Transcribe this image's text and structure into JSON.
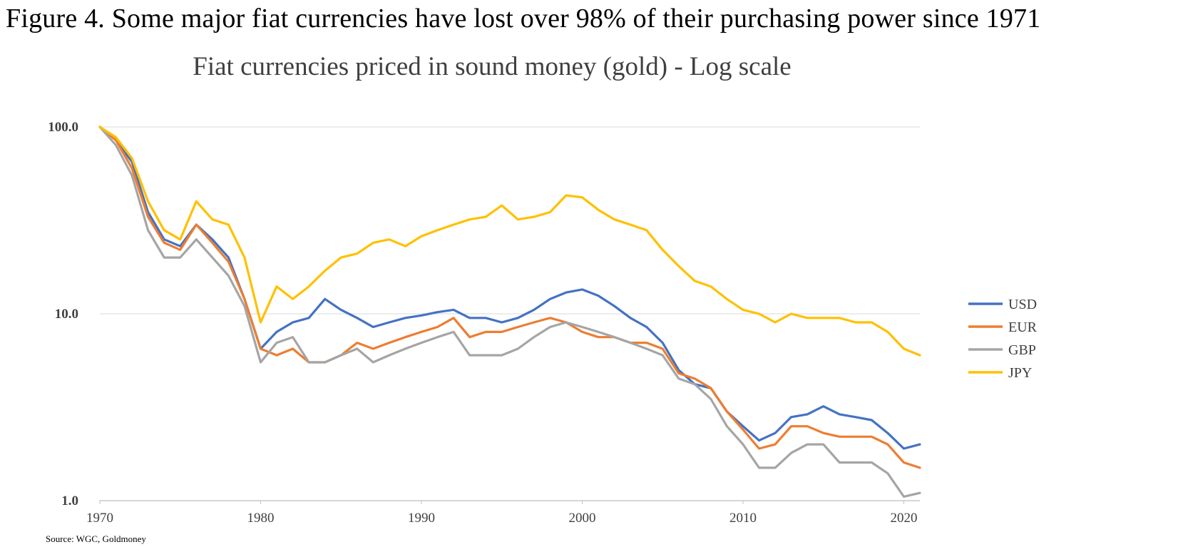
{
  "figure_title": "Figure 4. Some major fiat currencies have lost over 98% of their purchasing power since 1971",
  "source": "Source: WGC, Goldmoney",
  "chart_data": {
    "type": "line",
    "title": "Fiat currencies priced in sound money (gold) - Log scale",
    "xlabel": "",
    "ylabel": "",
    "y_scale": "log",
    "ylim": [
      1.0,
      100.0
    ],
    "xlim": [
      1970,
      2021
    ],
    "x_ticks": [
      "1970",
      "1980",
      "1990",
      "2000",
      "2010",
      "2020"
    ],
    "y_ticks": [
      "1.0",
      "10.0",
      "100.0"
    ],
    "grid": "horizontal",
    "legend": "right",
    "x": [
      1970,
      1971,
      1972,
      1973,
      1974,
      1975,
      1976,
      1977,
      1978,
      1979,
      1980,
      1981,
      1982,
      1983,
      1984,
      1985,
      1986,
      1987,
      1988,
      1989,
      1990,
      1991,
      1992,
      1993,
      1994,
      1995,
      1996,
      1997,
      1998,
      1999,
      2000,
      2001,
      2002,
      2003,
      2004,
      2005,
      2006,
      2007,
      2008,
      2009,
      2010,
      2011,
      2012,
      2013,
      2014,
      2015,
      2016,
      2017,
      2018,
      2019,
      2020,
      2021
    ],
    "series": [
      {
        "name": "USD",
        "color": "#4472C4",
        "values": [
          100,
          85,
          65,
          35,
          25,
          23,
          30,
          25,
          20,
          12,
          6.5,
          8.0,
          9.0,
          9.5,
          12.0,
          10.5,
          9.5,
          8.5,
          9.0,
          9.5,
          9.8,
          10.2,
          10.5,
          9.5,
          9.5,
          9.0,
          9.5,
          10.5,
          12.0,
          13.0,
          13.5,
          12.5,
          11.0,
          9.5,
          8.5,
          7.0,
          5.0,
          4.2,
          4.0,
          3.0,
          2.5,
          2.1,
          2.3,
          2.8,
          2.9,
          3.2,
          2.9,
          2.8,
          2.7,
          2.3,
          1.9,
          2.0
        ]
      },
      {
        "name": "EUR",
        "color": "#ED7D31",
        "values": [
          100,
          85,
          60,
          33,
          24,
          22,
          30,
          24,
          19,
          12,
          6.5,
          6.0,
          6.5,
          5.5,
          5.5,
          6.0,
          7.0,
          6.5,
          7.0,
          7.5,
          8.0,
          8.5,
          9.5,
          7.5,
          8.0,
          8.0,
          8.5,
          9.0,
          9.5,
          9.0,
          8.0,
          7.5,
          7.5,
          7.0,
          7.0,
          6.5,
          4.8,
          4.5,
          4.0,
          3.0,
          2.4,
          1.9,
          2.0,
          2.5,
          2.5,
          2.3,
          2.2,
          2.2,
          2.2,
          2.0,
          1.6,
          1.5
        ]
      },
      {
        "name": "GBP",
        "color": "#A5A5A5",
        "values": [
          100,
          80,
          55,
          28,
          20,
          20,
          25,
          20,
          16,
          11,
          5.5,
          7.0,
          7.5,
          5.5,
          5.5,
          6.0,
          6.5,
          5.5,
          6.0,
          6.5,
          7.0,
          7.5,
          8.0,
          6.0,
          6.0,
          6.0,
          6.5,
          7.5,
          8.5,
          9.0,
          8.5,
          8.0,
          7.5,
          7.0,
          6.5,
          6.0,
          4.5,
          4.2,
          3.5,
          2.5,
          2.0,
          1.5,
          1.5,
          1.8,
          2.0,
          2.0,
          1.6,
          1.6,
          1.6,
          1.4,
          1.05,
          1.1
        ]
      },
      {
        "name": "JPY",
        "color": "#FFC000",
        "values": [
          100,
          88,
          68,
          40,
          28,
          25,
          40,
          32,
          30,
          20,
          9.0,
          14.0,
          12.0,
          14.0,
          17.0,
          20.0,
          21.0,
          24.0,
          25.0,
          23.0,
          26.0,
          28.0,
          30.0,
          32.0,
          33.0,
          38.0,
          32.0,
          33.0,
          35.0,
          43.0,
          42.0,
          36.0,
          32.0,
          30.0,
          28.0,
          22.0,
          18.0,
          15.0,
          14.0,
          12.0,
          10.5,
          10.0,
          9.0,
          10.0,
          9.5,
          9.5,
          9.5,
          9.0,
          9.0,
          8.0,
          6.5,
          6.0
        ]
      }
    ]
  }
}
